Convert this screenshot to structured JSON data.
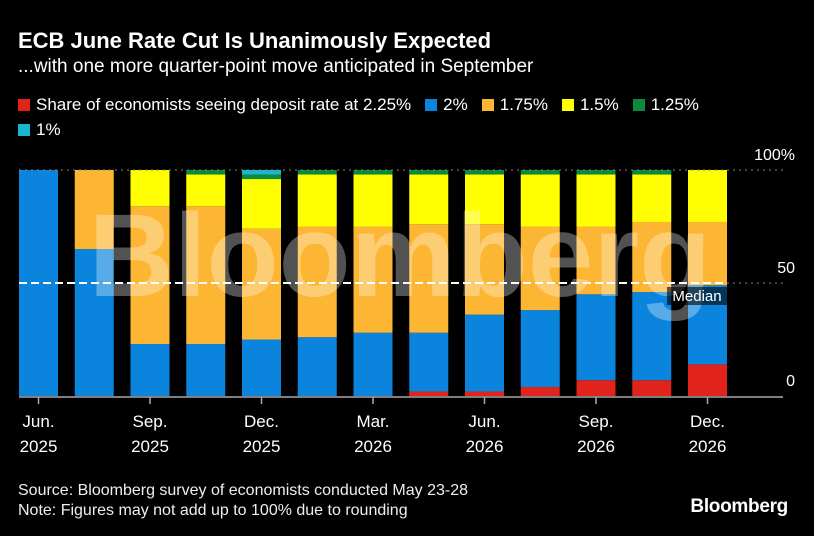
{
  "title": "ECB June Rate Cut Is Unanimously Expected",
  "subtitle": "...with one more quarter-point move anticipated in September",
  "source": "Source: Bloomberg survey of economists conducted May 23-28",
  "note": "Note: Figures may not add up to 100% due to rounding",
  "logo": "Bloomberg",
  "watermark": "Bloomberg",
  "chart_data": {
    "type": "bar",
    "stacked": true,
    "categories": [
      "Jun.\n2025",
      "",
      "Sep.\n2025",
      "",
      "Dec.\n2025",
      "",
      "Mar.\n2026",
      "",
      "Jun.\n2026",
      "",
      "Sep.\n2026",
      "",
      "Dec.\n2026"
    ],
    "ylim": [
      0,
      100
    ],
    "yticks": [
      {
        "value": 100,
        "label": "100%"
      },
      {
        "value": 50,
        "label": "50"
      },
      {
        "value": 0,
        "label": "0"
      }
    ],
    "legend_prefix": "Share of economists seeing deposit rate at",
    "legend_placement": "top",
    "series": [
      {
        "name": "2.25%",
        "color": "#e0241c",
        "values": [
          0,
          0,
          0,
          0,
          0,
          0,
          0,
          2,
          2,
          4,
          7,
          7,
          14
        ]
      },
      {
        "name": "2%",
        "color": "#0a84dc",
        "values": [
          100,
          65,
          23,
          23,
          25,
          26,
          28,
          26,
          34,
          34,
          38,
          39,
          35
        ]
      },
      {
        "name": "1.75%",
        "color": "#fdb633",
        "values": [
          0,
          35,
          61,
          61,
          49,
          49,
          47,
          48,
          40,
          37,
          30,
          31,
          28
        ]
      },
      {
        "name": "1.5%",
        "color": "#ffff00",
        "values": [
          0,
          0,
          16,
          14,
          22,
          23,
          23,
          22,
          22,
          23,
          23,
          21,
          23
        ]
      },
      {
        "name": "1.25%",
        "color": "#0a8a3c",
        "values": [
          0,
          0,
          0,
          2,
          2,
          2,
          2,
          2,
          2,
          2,
          2,
          2,
          0
        ]
      },
      {
        "name": "1%",
        "color": "#1ab6d0",
        "values": [
          0,
          0,
          0,
          0,
          2,
          0,
          0,
          0,
          0,
          0,
          0,
          0,
          0
        ]
      }
    ],
    "reference_line": {
      "value": 50,
      "label": "Median"
    },
    "grid": true
  }
}
